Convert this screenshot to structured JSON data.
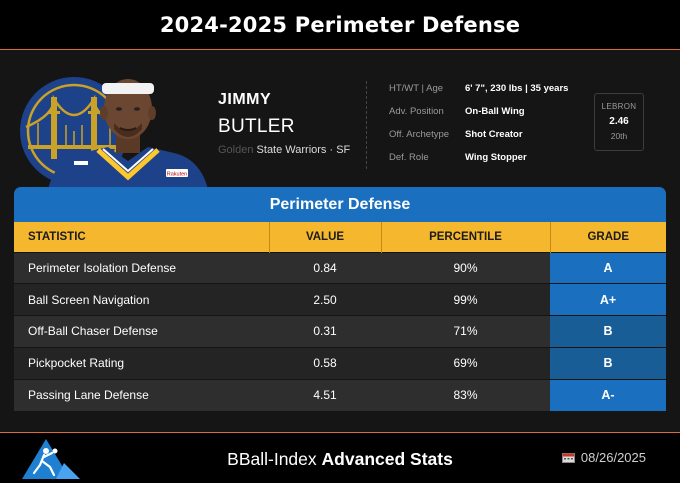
{
  "header": {
    "title": "2024-2025 Perimeter Defense"
  },
  "player": {
    "first_name": "JIMMY",
    "last_name": "BUTLER",
    "team_fragment": "Golden",
    "team_line": "State Warriors · SF",
    "jersey_text": "Rakuten"
  },
  "info": [
    {
      "label": "HT/WT | Age",
      "value": "6' 7\", 230 lbs | 35 years"
    },
    {
      "label": "Adv. Position",
      "value": "On-Ball Wing"
    },
    {
      "label": "Off. Archetype",
      "value": "Shot Creator"
    },
    {
      "label": "Def. Role",
      "value": "Wing Stopper"
    }
  ],
  "lebron": {
    "title": "LEBRON",
    "value": "2.46",
    "rank": "20th"
  },
  "table": {
    "title": "Perimeter Defense",
    "columns": [
      "STATISTIC",
      "VALUE",
      "PERCENTILE",
      "GRADE"
    ],
    "rows": [
      {
        "stat": "Perimeter Isolation Defense",
        "value": "0.84",
        "percentile": "90%",
        "grade": "A"
      },
      {
        "stat": "Ball Screen Navigation",
        "value": "2.50",
        "percentile": "99%",
        "grade": "A+"
      },
      {
        "stat": "Off-Ball Chaser Defense",
        "value": "0.31",
        "percentile": "71%",
        "grade": "B"
      },
      {
        "stat": "Pickpocket Rating",
        "value": "0.58",
        "percentile": "69%",
        "grade": "B"
      },
      {
        "stat": "Passing Lane Defense",
        "value": "4.51",
        "percentile": "83%",
        "grade": "A-"
      }
    ]
  },
  "grade_colors": {
    "A+": "#1a6fbf",
    "A": "#1a6fbf",
    "A-": "#1a6fbf",
    "B": "#195d96"
  },
  "footer": {
    "brand_regular": "BBall-Index",
    "brand_bold": "Advanced Stats",
    "date": "08/26/2025",
    "date_icon": "calendar-icon"
  },
  "colors": {
    "accent_line": "#e0683a",
    "table_header": "#f5b72e",
    "card_header": "#1a6fbf"
  }
}
